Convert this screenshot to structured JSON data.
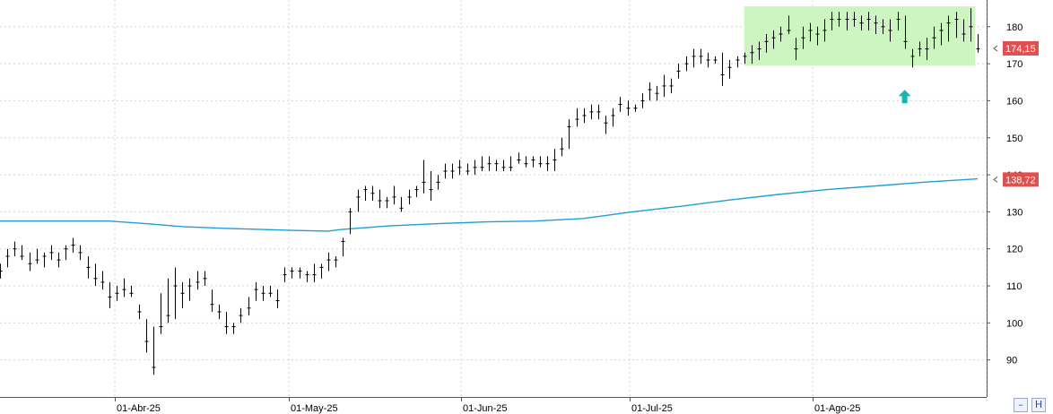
{
  "chart_data": {
    "type": "ohlc",
    "x_axis": {
      "labels": [
        "01-Abr-25",
        "01-May-25",
        "01-Jun-25",
        "01-Jul-25",
        "01-Ago-25"
      ]
    },
    "y_axis": {
      "ticks": [
        90,
        100,
        110,
        120,
        130,
        140,
        150,
        160,
        170,
        180
      ],
      "range": [
        80,
        186
      ],
      "grid": true,
      "side": "right"
    },
    "series": [
      {
        "type": "ohlc",
        "color": "#000000",
        "bars": [
          [
            0,
            116,
            112,
            114
          ],
          [
            3,
            120,
            115,
            118
          ],
          [
            6,
            122,
            118,
            120
          ],
          [
            9,
            121,
            117,
            118
          ],
          [
            12,
            119,
            114,
            116
          ],
          [
            15,
            120,
            116,
            117
          ],
          [
            18,
            119,
            115,
            118
          ],
          [
            21,
            121,
            117,
            119
          ],
          [
            24,
            119,
            115,
            117
          ],
          [
            27,
            121,
            117,
            120
          ],
          [
            30,
            123,
            119,
            121
          ],
          [
            33,
            121,
            117,
            119
          ],
          [
            36,
            118,
            112,
            115
          ],
          [
            39,
            116,
            110,
            112
          ],
          [
            42,
            114,
            109,
            111
          ],
          [
            45,
            111,
            104,
            107
          ],
          [
            48,
            110,
            106,
            108
          ],
          [
            51,
            112,
            107,
            109
          ],
          [
            54,
            110,
            107,
            108
          ],
          [
            57,
            105,
            101,
            103
          ],
          [
            60,
            101,
            92,
            95
          ],
          [
            63,
            99,
            86,
            88
          ],
          [
            66,
            108,
            97,
            99
          ],
          [
            69,
            112,
            100,
            102
          ],
          [
            72,
            115,
            101,
            110
          ],
          [
            75,
            111,
            104,
            108
          ],
          [
            78,
            112,
            106,
            110
          ],
          [
            81,
            114,
            109,
            111
          ],
          [
            84,
            114,
            110,
            112
          ],
          [
            87,
            109,
            103,
            105
          ],
          [
            90,
            105,
            101,
            103
          ],
          [
            93,
            103,
            97,
            99
          ],
          [
            96,
            100,
            97,
            99
          ],
          [
            99,
            104,
            100,
            102
          ],
          [
            102,
            107,
            102,
            104
          ],
          [
            105,
            111,
            106,
            109
          ],
          [
            108,
            110,
            106,
            108
          ],
          [
            111,
            110,
            107,
            108
          ],
          [
            114,
            109,
            104,
            106
          ],
          [
            117,
            115,
            111,
            113
          ],
          [
            120,
            115,
            112,
            114
          ],
          [
            123,
            115,
            112,
            114
          ],
          [
            126,
            114,
            111,
            113
          ],
          [
            129,
            116,
            111,
            113
          ],
          [
            132,
            116,
            112,
            115
          ],
          [
            135,
            119,
            114,
            117
          ],
          [
            138,
            118,
            115,
            117
          ],
          [
            141,
            123,
            118,
            122
          ],
          [
            144,
            131,
            124,
            130
          ],
          [
            147,
            136,
            130,
            134
          ],
          [
            150,
            137,
            133,
            136
          ],
          [
            153,
            137,
            133,
            135
          ],
          [
            156,
            136,
            131,
            133
          ],
          [
            159,
            134,
            131,
            133
          ],
          [
            162,
            137,
            132,
            134
          ],
          [
            165,
            134,
            130,
            131
          ],
          [
            168,
            136,
            132,
            134
          ],
          [
            171,
            137,
            134,
            136
          ],
          [
            174,
            144,
            135,
            138
          ],
          [
            177,
            141,
            133,
            136
          ],
          [
            180,
            140,
            136,
            138
          ],
          [
            183,
            143,
            139,
            141
          ],
          [
            186,
            143,
            139,
            141
          ],
          [
            189,
            144,
            140,
            142
          ],
          [
            192,
            143,
            140,
            141
          ],
          [
            195,
            144,
            140,
            142
          ],
          [
            198,
            145,
            141,
            142
          ],
          [
            201,
            145,
            141,
            143
          ],
          [
            204,
            144,
            141,
            143
          ],
          [
            207,
            144,
            141,
            142
          ],
          [
            210,
            145,
            141,
            142
          ],
          [
            213,
            146,
            143,
            144
          ],
          [
            216,
            145,
            142,
            143
          ],
          [
            219,
            145,
            142,
            144
          ],
          [
            222,
            145,
            142,
            143
          ],
          [
            225,
            145,
            141,
            143
          ],
          [
            228,
            147,
            141,
            144
          ],
          [
            231,
            150,
            145,
            147
          ],
          [
            234,
            155,
            147,
            153
          ],
          [
            237,
            158,
            153,
            155
          ],
          [
            240,
            158,
            154,
            156
          ],
          [
            243,
            159,
            155,
            157
          ],
          [
            246,
            159,
            155,
            157
          ],
          [
            249,
            156,
            151,
            154
          ],
          [
            252,
            158,
            153,
            156
          ],
          [
            255,
            161,
            157,
            159
          ],
          [
            258,
            160,
            156,
            158
          ],
          [
            261,
            159,
            157,
            158
          ],
          [
            264,
            162,
            158,
            160
          ],
          [
            267,
            165,
            160,
            163
          ],
          [
            270,
            164,
            160,
            162
          ],
          [
            273,
            167,
            161,
            164
          ],
          [
            276,
            166,
            162,
            164
          ],
          [
            279,
            170,
            166,
            168
          ],
          [
            282,
            172,
            168,
            170
          ],
          [
            285,
            174,
            169,
            172
          ],
          [
            288,
            174,
            170,
            172
          ],
          [
            291,
            173,
            169,
            171
          ],
          [
            294,
            172,
            170,
            171
          ],
          [
            297,
            173,
            164,
            167
          ],
          [
            300,
            171,
            166,
            169
          ],
          [
            303,
            172,
            169,
            171
          ],
          [
            306,
            173,
            170,
            172
          ],
          [
            309,
            175,
            170,
            173
          ],
          [
            312,
            176,
            171,
            174
          ],
          [
            315,
            178,
            173,
            176
          ],
          [
            318,
            179,
            174,
            177
          ],
          [
            321,
            180,
            176,
            178
          ],
          [
            324,
            183,
            178,
            179
          ],
          [
            327,
            177,
            171,
            174
          ],
          [
            330,
            180,
            174,
            177
          ],
          [
            333,
            181,
            176,
            179
          ],
          [
            336,
            180,
            175,
            178
          ],
          [
            339,
            182,
            176,
            179
          ],
          [
            342,
            184,
            179,
            182
          ],
          [
            345,
            184,
            180,
            182
          ],
          [
            348,
            184,
            179,
            182
          ],
          [
            351,
            184,
            180,
            182
          ],
          [
            354,
            183,
            179,
            181
          ],
          [
            357,
            184,
            179,
            182
          ],
          [
            360,
            183,
            178,
            181
          ],
          [
            363,
            182,
            178,
            180
          ],
          [
            366,
            182,
            176,
            179
          ],
          [
            369,
            184,
            179,
            182
          ],
          [
            372,
            183,
            174,
            176
          ],
          [
            375,
            174,
            169,
            172
          ],
          [
            378,
            176,
            172,
            174
          ],
          [
            381,
            177,
            171,
            174
          ],
          [
            384,
            180,
            174,
            177
          ],
          [
            387,
            181,
            175,
            179
          ],
          [
            390,
            183,
            176,
            181
          ],
          [
            393,
            184,
            177,
            182
          ],
          [
            396,
            182,
            176,
            178
          ],
          [
            399,
            185,
            176,
            180
          ],
          [
            402,
            178,
            173,
            174
          ]
        ]
      },
      {
        "type": "line",
        "color": "#1e9fd6",
        "points": [
          [
            0,
            127.5
          ],
          [
            45,
            127.5
          ],
          [
            60,
            126.8
          ],
          [
            75,
            126
          ],
          [
            90,
            125.6
          ],
          [
            105,
            125.3
          ],
          [
            120,
            125
          ],
          [
            135,
            124.8
          ],
          [
            140,
            125.2
          ],
          [
            160,
            126.2
          ],
          [
            180,
            126.8
          ],
          [
            200,
            127.3
          ],
          [
            220,
            127.5
          ],
          [
            240,
            128.2
          ],
          [
            260,
            130
          ],
          [
            280,
            131.5
          ],
          [
            300,
            133.2
          ],
          [
            320,
            134.7
          ],
          [
            340,
            136
          ],
          [
            360,
            137
          ],
          [
            380,
            138
          ],
          [
            402,
            138.9
          ]
        ]
      }
    ],
    "highlight": {
      "x": [
        306,
        401
      ],
      "y": [
        169.5,
        185.5
      ],
      "color": "#ccf5c0"
    },
    "arrow_marker": {
      "x": 372,
      "y": 161,
      "color": "#18b4b0"
    },
    "price_labels": [
      {
        "value": 174.15,
        "text": "174,15",
        "color": "#e05050"
      },
      {
        "value": 138.72,
        "text": "138,72",
        "color": "#e05050"
      }
    ]
  }
}
